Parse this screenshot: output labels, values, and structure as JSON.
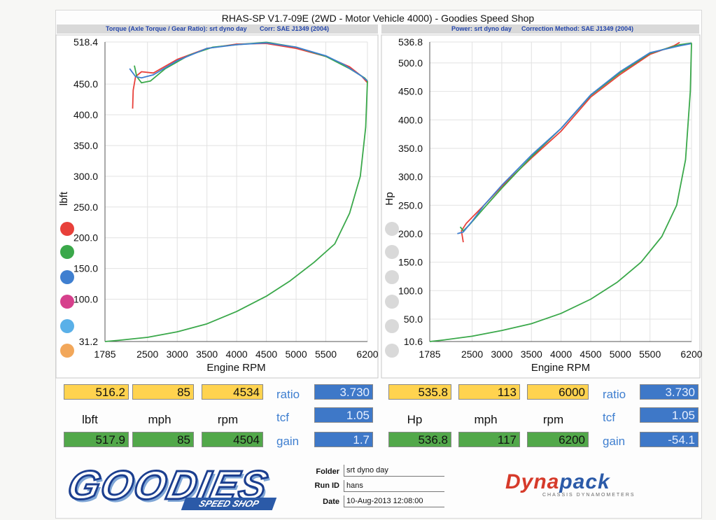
{
  "title": "RHAS-SP V1.7-09E  (2WD - Motor Vehicle 4000) - Goodies Speed Shop",
  "left_subheader": {
    "mode": "Torque (Axle Torque / Gear Ratio): srt dyno day",
    "corr": "Corr: SAE J1349 (2004)"
  },
  "right_subheader": {
    "mode": "Power: srt dyno day",
    "corr": "Correction Method: SAE J1349 (2004)"
  },
  "colors": {
    "red": "#e8403a",
    "green": "#3aa84a",
    "blue": "#3f7fd0",
    "pink": "#d6408c",
    "sky": "#5ab0e8",
    "orange": "#f2a75a",
    "grey": "#d9d9d9",
    "yellow": "#ffd34f"
  },
  "chart_data": [
    {
      "type": "line",
      "title": "Torque",
      "xlabel": "Engine RPM",
      "ylabel": "lbft",
      "xlim": [
        1785,
        6200
      ],
      "ylim": [
        31.2,
        518.4
      ],
      "xticks": [
        "1785",
        "2500",
        "3000",
        "3500",
        "4000",
        "4500",
        "5000",
        "5500",
        "6200"
      ],
      "yticks": [
        "31.2",
        "100.0",
        "150.0",
        "200.0",
        "250.0",
        "300.0",
        "350.0",
        "400.0",
        "450.0",
        "518.4"
      ],
      "series": [
        {
          "name": "red",
          "color": "#e8403a",
          "x": [
            2250,
            2260,
            2300,
            2400,
            2600,
            3000,
            3500,
            4000,
            4500,
            5000,
            5500,
            5900,
            6100,
            6200
          ],
          "y": [
            410,
            440,
            462,
            470,
            468,
            490,
            508,
            515,
            516,
            508,
            495,
            478,
            463,
            452
          ]
        },
        {
          "name": "green",
          "color": "#3aa84a",
          "x": [
            2280,
            2320,
            2400,
            2550,
            2800,
            3200,
            3600,
            4000,
            4500,
            5000,
            5500,
            5900,
            6150,
            6200
          ],
          "y": [
            480,
            462,
            452,
            455,
            475,
            497,
            510,
            514,
            518,
            510,
            495,
            475,
            460,
            455
          ]
        },
        {
          "name": "blue",
          "color": "#3f7fd0",
          "x": [
            2200,
            2300,
            2400,
            2600,
            3000,
            3500,
            4000,
            4500,
            5000,
            5500,
            5800,
            6100,
            6200
          ],
          "y": [
            475,
            462,
            460,
            465,
            488,
            508,
            514,
            517,
            510,
            496,
            482,
            463,
            455
          ]
        },
        {
          "name": "green-coastdown",
          "color": "#3aa84a",
          "x": [
            6200,
            6170,
            6080,
            5900,
            5650,
            5300,
            4900,
            4500,
            4000,
            3500,
            3000,
            2500,
            2000,
            1785
          ],
          "y": [
            455,
            380,
            300,
            240,
            190,
            160,
            130,
            105,
            80,
            60,
            47,
            38,
            33,
            31.2
          ]
        }
      ]
    },
    {
      "type": "line",
      "title": "Power",
      "xlabel": "Engine RPM",
      "ylabel": "Hp",
      "xlim": [
        1785,
        6200
      ],
      "ylim": [
        10.6,
        536.8
      ],
      "xticks": [
        "1785",
        "2500",
        "3000",
        "3500",
        "4000",
        "4500",
        "5000",
        "5500",
        "6200"
      ],
      "yticks": [
        "10.6",
        "50.0",
        "100.0",
        "150.0",
        "200.0",
        "250.0",
        "300.0",
        "350.0",
        "400.0",
        "450.0",
        "500.0",
        "536.8"
      ],
      "series": [
        {
          "name": "red",
          "color": "#e8403a",
          "x": [
            2350,
            2320,
            2400,
            2700,
            3000,
            3500,
            4000,
            4500,
            5000,
            5500,
            5900,
            6000
          ],
          "y": [
            185,
            205,
            218,
            250,
            283,
            333,
            380,
            440,
            480,
            515,
            530,
            536
          ]
        },
        {
          "name": "green",
          "color": "#3aa84a",
          "x": [
            2300,
            2350,
            2450,
            2700,
            3000,
            3500,
            4000,
            4500,
            5000,
            5500,
            6000,
            6200
          ],
          "y": [
            212,
            205,
            215,
            245,
            280,
            335,
            385,
            443,
            483,
            517,
            532,
            535
          ]
        },
        {
          "name": "blue",
          "color": "#3f7fd0",
          "x": [
            2250,
            2350,
            2500,
            2700,
            3000,
            3500,
            4000,
            4500,
            5000,
            5500,
            6000,
            6200
          ],
          "y": [
            200,
            203,
            222,
            250,
            285,
            338,
            385,
            444,
            485,
            518,
            530,
            534
          ]
        },
        {
          "name": "green-coastdown",
          "color": "#3aa84a",
          "x": [
            6200,
            6180,
            6100,
            5950,
            5700,
            5350,
            4950,
            4500,
            4000,
            3500,
            3000,
            2500,
            2000,
            1785
          ],
          "y": [
            535,
            450,
            330,
            250,
            195,
            150,
            115,
            85,
            60,
            42,
            30,
            20,
            13,
            10.6
          ]
        }
      ]
    }
  ],
  "legend_left": [
    "red",
    "green",
    "blue",
    "pink",
    "sky",
    "orange"
  ],
  "left_readout": {
    "row1": [
      "516.2",
      "85",
      "4534"
    ],
    "row2_labels": [
      "lbft",
      "mph",
      "rpm"
    ],
    "row3": [
      "517.9",
      "85",
      "4504"
    ],
    "side_labels": [
      "ratio",
      "tcf",
      "gain"
    ],
    "side_values": [
      "3.730",
      "1.05",
      "1.7"
    ]
  },
  "right_readout": {
    "row1": [
      "535.8",
      "113",
      "6000"
    ],
    "row2_labels": [
      "Hp",
      "mph",
      "rpm"
    ],
    "row3": [
      "536.8",
      "117",
      "6200"
    ],
    "side_labels": [
      "ratio",
      "tcf",
      "gain"
    ],
    "side_values": [
      "3.730",
      "1.05",
      "-54.1"
    ]
  },
  "footer": {
    "logo": "GOODIES",
    "logo_sub": "SPEED SHOP",
    "folder_label": "Folder",
    "folder": "srt dyno day",
    "runid_label": "Run ID",
    "runid": "hans",
    "date_label": "Date",
    "date": "10-Aug-2013  12:08:00",
    "brand_a": "Dyna",
    "brand_b": "pack",
    "brand_sub": "CHASSIS DYNAMOMETERS"
  }
}
